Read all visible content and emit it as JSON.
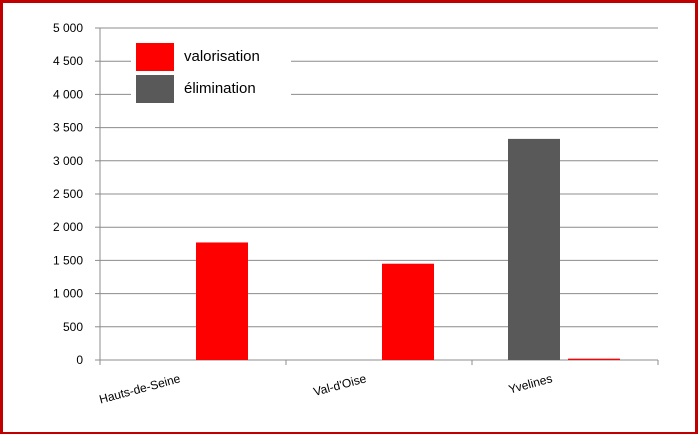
{
  "chart_data": {
    "type": "bar",
    "categories": [
      "Hauts-de-Seine",
      "Val-d'Oise",
      "Yvelines"
    ],
    "series": [
      {
        "name": "élimination",
        "color": "#595959",
        "values": [
          0,
          0,
          3330
        ]
      },
      {
        "name": "valorisation",
        "color": "#ff0000",
        "values": [
          1770,
          1450,
          20
        ]
      }
    ],
    "legend_order": [
      "valorisation",
      "élimination"
    ],
    "legend_position": "top-left",
    "ylim": [
      0,
      5000
    ],
    "yticks": [
      0,
      500,
      1000,
      1500,
      2000,
      2500,
      3000,
      3500,
      4000,
      4500,
      5000
    ],
    "ytick_labels": [
      "0",
      "500",
      "1 000",
      "1 500",
      "2 000",
      "2 500",
      "3 000",
      "3 500",
      "4 000",
      "4 500",
      "5 000"
    ],
    "grid": true,
    "title": "",
    "xlabel": "",
    "ylabel": ""
  }
}
